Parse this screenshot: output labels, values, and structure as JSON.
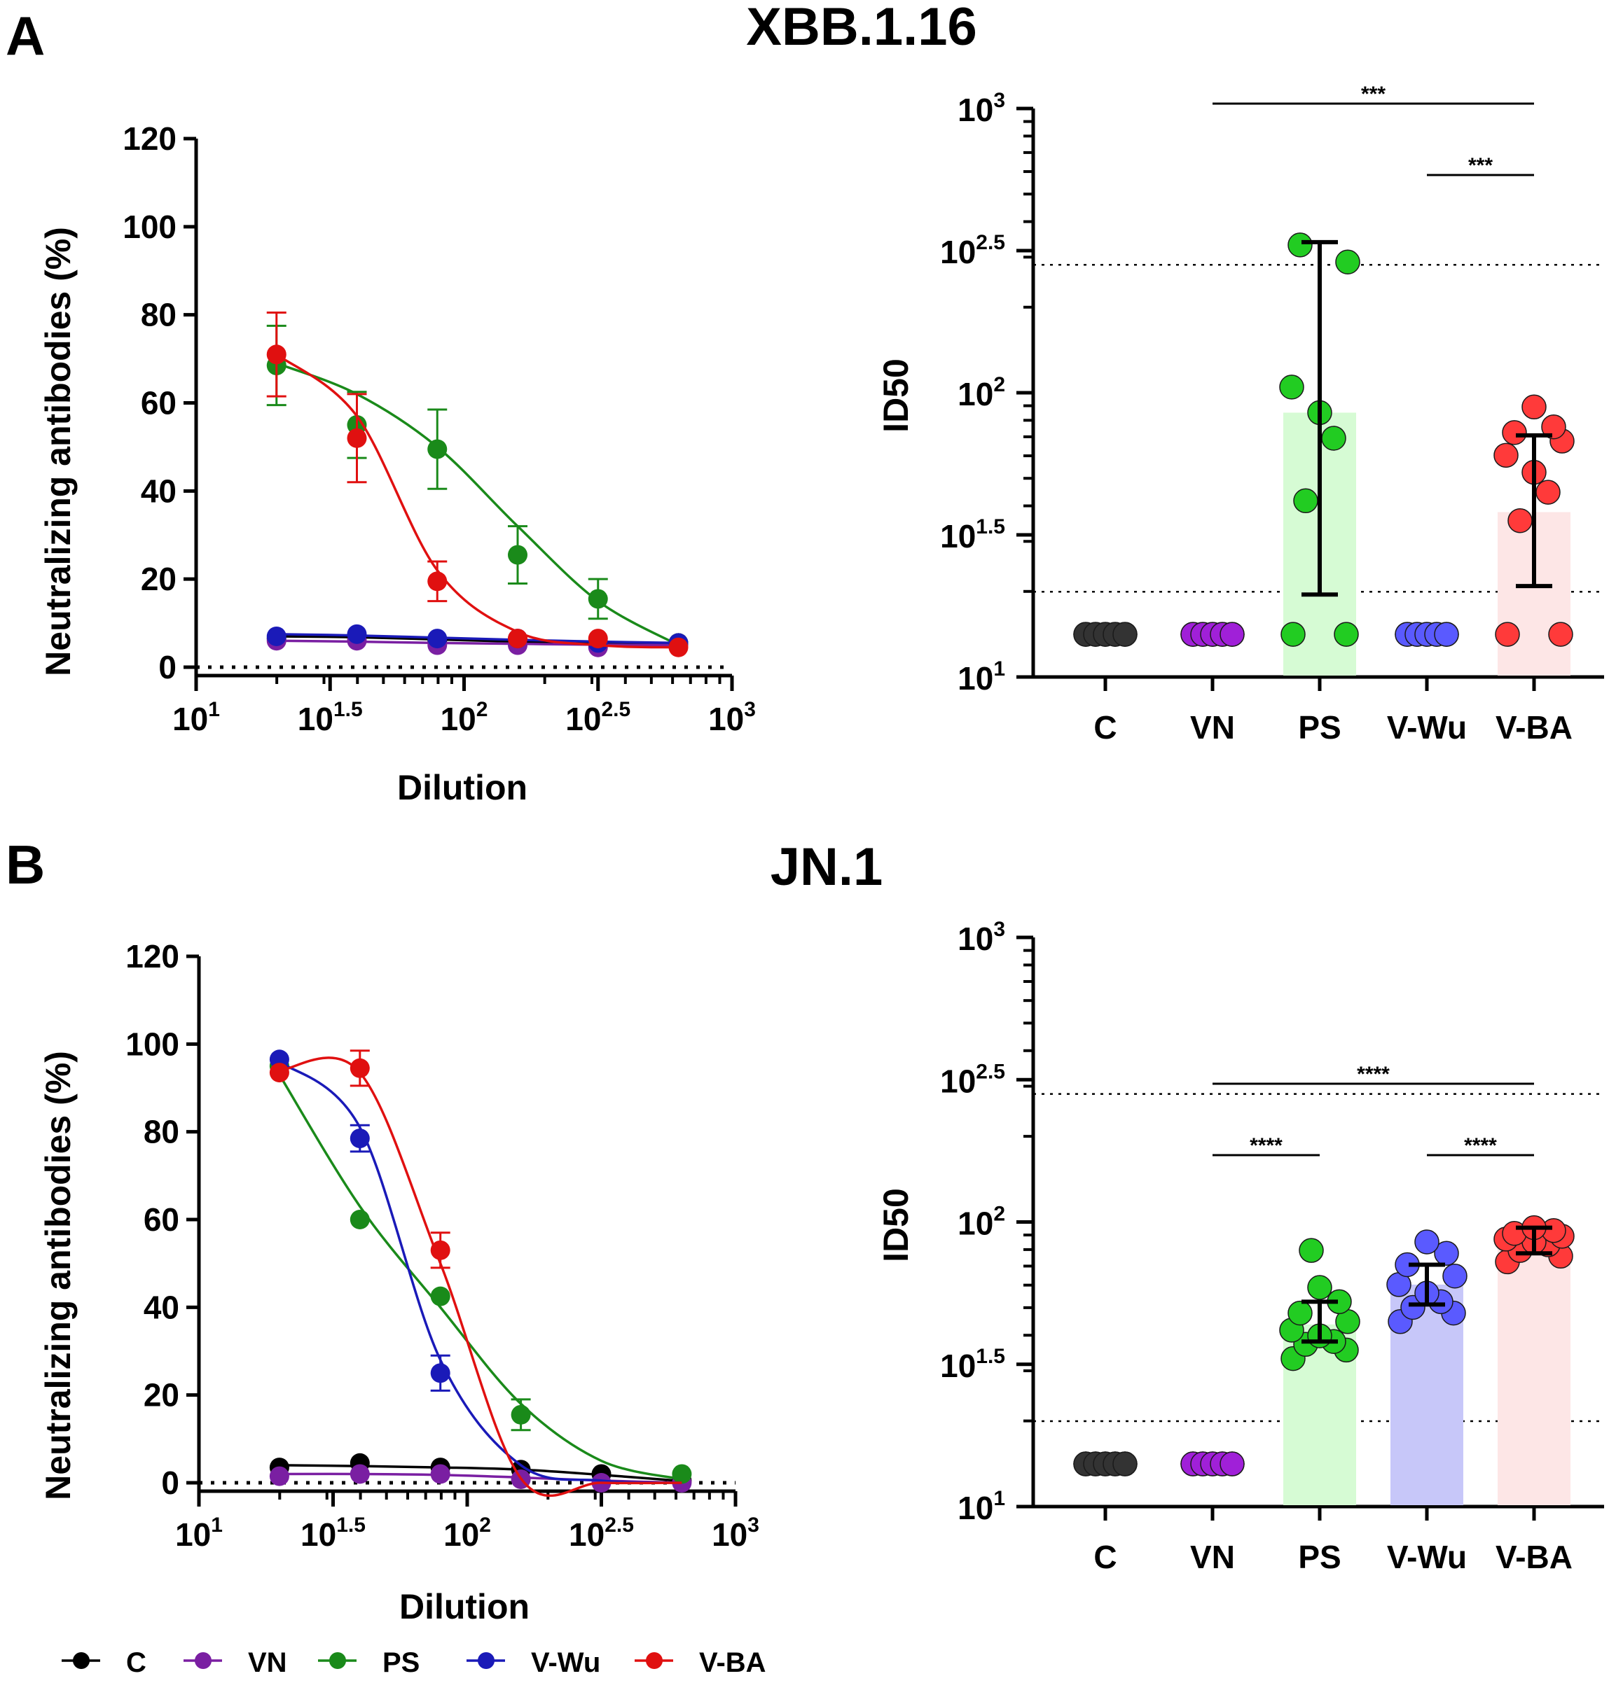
{
  "panels": [
    {
      "letter": "A",
      "title": "XBB.1.16",
      "curve": {
        "ylabel": "Neutralizing antibodies (%)",
        "xlabel": "Dilution",
        "xticks": [
          {
            "base": "10",
            "exp": "1"
          },
          {
            "base": "10",
            "exp": "1.5"
          },
          {
            "base": "10",
            "exp": "2"
          },
          {
            "base": "10",
            "exp": "2.5"
          },
          {
            "base": "10",
            "exp": "3"
          }
        ],
        "yticks": [
          "0",
          "20",
          "40",
          "60",
          "80",
          "100",
          "120"
        ]
      },
      "bars": {
        "ylabel": "ID50",
        "yticks": [
          {
            "base": "10",
            "exp": "1"
          },
          {
            "base": "10",
            "exp": "1.5"
          },
          {
            "base": "10",
            "exp": "2"
          },
          {
            "base": "10",
            "exp": "2.5"
          },
          {
            "base": "10",
            "exp": "3"
          }
        ],
        "categories": [
          "C",
          "VN",
          "PS",
          "V-Wu",
          "V-BA"
        ],
        "annotations": [
          "***",
          "***"
        ]
      }
    },
    {
      "letter": "B",
      "title": "JN.1",
      "curve": {
        "ylabel": "Neutralizing antibodies (%)",
        "xlabel": "Dilution",
        "xticks": [
          {
            "base": "10",
            "exp": "1"
          },
          {
            "base": "10",
            "exp": "1.5"
          },
          {
            "base": "10",
            "exp": "2"
          },
          {
            "base": "10",
            "exp": "2.5"
          },
          {
            "base": "10",
            "exp": "3"
          }
        ],
        "yticks": [
          "0",
          "20",
          "40",
          "60",
          "80",
          "100",
          "120"
        ]
      },
      "bars": {
        "ylabel": "ID50",
        "yticks": [
          {
            "base": "10",
            "exp": "1"
          },
          {
            "base": "10",
            "exp": "1.5"
          },
          {
            "base": "10",
            "exp": "2"
          },
          {
            "base": "10",
            "exp": "2.5"
          },
          {
            "base": "10",
            "exp": "3"
          }
        ],
        "categories": [
          "C",
          "VN",
          "PS",
          "V-Wu",
          "V-BA"
        ],
        "annotations": [
          "****",
          "****",
          "****"
        ]
      }
    }
  ],
  "legend": [
    "C",
    "VN",
    "PS",
    "V-Wu",
    "V-BA"
  ],
  "colors": {
    "C": "#000000",
    "VN": "#7a1fa2",
    "PS": "#1a8a1a",
    "V-Wu": "#1a1ab8",
    "V-BA": "#e01010",
    "C_bar": "#333333",
    "VN_bar": "#a020d8",
    "PS_bar": "#22cc22",
    "V-Wu_bar": "#5a5aff",
    "V-BA_bar": "#ff3a3a",
    "PS_fill": "#d6fbd4",
    "V-Wu_fill": "#c7c7f9",
    "V-BA_fill": "#fde6e6"
  },
  "chart_data": [
    {
      "type": "line",
      "panel": "A",
      "title": "XBB.1.16",
      "xlabel": "Dilution",
      "ylabel": "Neutralizing antibodies (%)",
      "xscale": "log10",
      "xlim_log10": [
        1,
        3
      ],
      "ylim": [
        0,
        120
      ],
      "x_log10": [
        1.3,
        1.6,
        1.9,
        2.2,
        2.5,
        2.8
      ],
      "series": [
        {
          "name": "C",
          "values": [
            6.5,
            6.8,
            6.0,
            6.0,
            5.5,
            5.5
          ],
          "err": [
            1,
            1,
            1,
            1,
            1,
            1
          ],
          "curve": [
            7,
            6.8,
            6.3,
            5.8,
            5.5,
            5.3
          ]
        },
        {
          "name": "VN",
          "values": [
            6.0,
            6.0,
            5.0,
            5.0,
            4.5,
            5.0
          ],
          "err": [
            1,
            1,
            1,
            1,
            1,
            1
          ],
          "curve": [
            6,
            5.8,
            5.5,
            5.3,
            5.1,
            5.0
          ]
        },
        {
          "name": "PS",
          "values": [
            68.5,
            55,
            49.5,
            25.5,
            15.5,
            5.5
          ],
          "err": [
            9,
            7.5,
            9,
            6.5,
            4.5,
            1
          ],
          "curve": [
            69,
            62,
            50,
            32,
            15,
            5
          ]
        },
        {
          "name": "V-Wu",
          "values": [
            7.0,
            7.5,
            6.5,
            6.5,
            5.5,
            5.5
          ],
          "err": [
            1,
            1,
            1,
            1,
            1,
            1
          ],
          "curve": [
            7.5,
            7.2,
            6.7,
            6.2,
            5.8,
            5.5
          ]
        },
        {
          "name": "V-BA",
          "values": [
            71,
            52,
            19.5,
            6.5,
            6.5,
            4.5
          ],
          "err": [
            9.5,
            10,
            4.5,
            1,
            1,
            1
          ],
          "curve": [
            71,
            57,
            22,
            8,
            5,
            4.5
          ]
        }
      ]
    },
    {
      "type": "scatter",
      "panel": "A",
      "title": "XBB.1.16",
      "ylabel": "ID50",
      "yscale": "log10",
      "ylim_log10": [
        1,
        3
      ],
      "reference_lines_log10": [
        1.3,
        2.45
      ],
      "categories": [
        "C",
        "VN",
        "PS",
        "V-Wu",
        "V-BA"
      ],
      "bar_mean_log10": [
        null,
        null,
        1.93,
        null,
        1.58
      ],
      "error_range_log10": [
        null,
        null,
        [
          1.29,
          2.53
        ],
        null,
        [
          1.32,
          1.85
        ]
      ],
      "points_log10": [
        [
          1.15,
          1.15,
          1.15,
          1.15,
          1.15,
          1.15,
          1.15,
          1.15,
          1.15,
          1.15
        ],
        [
          1.15,
          1.15,
          1.15,
          1.15,
          1.15,
          1.15,
          1.15,
          1.15,
          1.15,
          1.15
        ],
        [
          1.15,
          1.15,
          1.62,
          1.84,
          1.93,
          2.02,
          2.46,
          2.52
        ],
        [
          1.15,
          1.15,
          1.15,
          1.15,
          1.15,
          1.15,
          1.15,
          1.15,
          1.15,
          1.15
        ],
        [
          1.15,
          1.15,
          1.55,
          1.65,
          1.72,
          1.78,
          1.83,
          1.86,
          1.88,
          1.95
        ]
      ],
      "significance": [
        {
          "from": "VN",
          "to": "V-BA",
          "label": "***"
        },
        {
          "from": "V-Wu",
          "to": "V-BA",
          "label": "***"
        }
      ]
    },
    {
      "type": "line",
      "panel": "B",
      "title": "JN.1",
      "xlabel": "Dilution",
      "ylabel": "Neutralizing antibodies (%)",
      "xscale": "log10",
      "xlim_log10": [
        1,
        3
      ],
      "ylim": [
        0,
        120
      ],
      "x_log10": [
        1.3,
        1.6,
        1.9,
        2.2,
        2.5,
        2.8
      ],
      "series": [
        {
          "name": "C",
          "values": [
            3.5,
            4.5,
            3.5,
            3.0,
            2.0,
            0.5
          ],
          "err": [
            1,
            1,
            1,
            1,
            1,
            1
          ],
          "curve": [
            4,
            3.8,
            3.5,
            3,
            1.8,
            0.4
          ]
        },
        {
          "name": "VN",
          "values": [
            1.5,
            2.0,
            2.0,
            0.8,
            0.0,
            0.0
          ],
          "err": [
            1,
            1,
            1,
            1,
            1,
            1
          ],
          "curve": [
            2,
            2,
            1.8,
            1.2,
            0.5,
            0
          ]
        },
        {
          "name": "PS",
          "values": [
            95,
            60,
            42.5,
            15.5,
            null,
            2.0
          ],
          "err": [
            1,
            1,
            1,
            3.5,
            0,
            0
          ],
          "curve": [
            93,
            63,
            40,
            18,
            5,
            0.8
          ]
        },
        {
          "name": "V-Wu",
          "values": [
            96.5,
            78.5,
            25,
            null,
            null,
            null
          ],
          "err": [
            1,
            3,
            4,
            0,
            0,
            0
          ],
          "curve": [
            96,
            81,
            28,
            4,
            0.5,
            0
          ]
        },
        {
          "name": "V-BA",
          "values": [
            93.5,
            94.5,
            53,
            null,
            null,
            null
          ],
          "err": [
            1,
            4,
            4,
            0,
            0,
            0
          ],
          "curve": [
            94,
            93.5,
            50,
            1,
            0,
            0
          ]
        }
      ]
    },
    {
      "type": "scatter",
      "panel": "B",
      "title": "JN.1",
      "ylabel": "ID50",
      "yscale": "log10",
      "ylim_log10": [
        1,
        3
      ],
      "reference_lines_log10": [
        1.3,
        2.45
      ],
      "categories": [
        "C",
        "VN",
        "PS",
        "V-Wu",
        "V-BA"
      ],
      "bar_mean_log10": [
        null,
        null,
        1.64,
        1.78,
        1.93
      ],
      "error_range_log10": [
        null,
        null,
        [
          1.58,
          1.72
        ],
        [
          1.71,
          1.85
        ],
        [
          1.89,
          1.98
        ]
      ],
      "points_log10": [
        [
          1.15,
          1.15,
          1.15,
          1.15,
          1.15,
          1.15,
          1.15,
          1.15,
          1.15,
          1.15
        ],
        [
          1.15,
          1.15,
          1.15,
          1.15,
          1.15,
          1.15,
          1.15,
          1.15,
          1.15,
          1.15
        ],
        [
          1.52,
          1.55,
          1.57,
          1.58,
          1.6,
          1.62,
          1.65,
          1.68,
          1.72,
          1.77,
          1.9
        ],
        [
          1.65,
          1.68,
          1.7,
          1.72,
          1.75,
          1.78,
          1.81,
          1.85,
          1.89,
          1.93
        ],
        [
          1.86,
          1.88,
          1.9,
          1.92,
          1.93,
          1.94,
          1.95,
          1.96,
          1.97,
          1.98
        ]
      ],
      "significance": [
        {
          "from": "VN",
          "to": "V-BA",
          "label": "****"
        },
        {
          "from": "VN",
          "to": "PS",
          "label": "****"
        },
        {
          "from": "V-Wu",
          "to": "V-BA",
          "label": "****"
        }
      ]
    }
  ]
}
